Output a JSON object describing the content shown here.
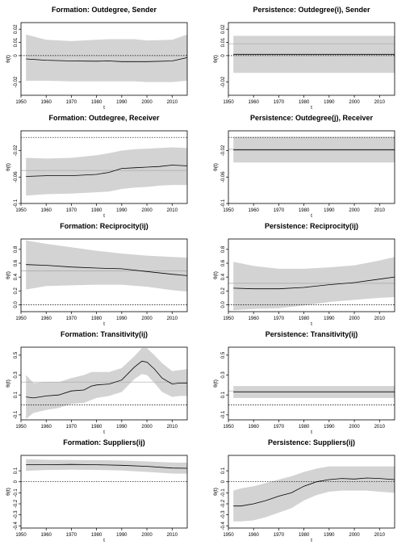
{
  "chart_data": [
    {
      "type": "area",
      "title": "Formation: Outdegree, Sender",
      "xlabel": "t",
      "ylabel": "θ(t)",
      "xlim": [
        1950,
        2016
      ],
      "ylim": [
        -0.03,
        0.025
      ],
      "xticks": [
        1950,
        1960,
        1970,
        1980,
        1990,
        2000,
        2010
      ],
      "yticks": [
        -0.02,
        0,
        0.01,
        0.02
      ],
      "ytick_labels": [
        "-0.02",
        "0",
        "0.01",
        "0.02"
      ],
      "reference_lines": [
        {
          "y": 0,
          "style": "dotted"
        }
      ],
      "series": [
        {
          "role": "estimate",
          "x": [
            1952,
            1960,
            1970,
            1980,
            1985,
            1990,
            1995,
            2000,
            2010,
            2016
          ],
          "y": [
            -0.0025,
            -0.0035,
            -0.004,
            -0.0042,
            -0.004,
            -0.0045,
            -0.0045,
            -0.0045,
            -0.004,
            -0.0015
          ]
        },
        {
          "role": "upper",
          "x": [
            1952,
            1960,
            1970,
            1980,
            1985,
            1990,
            1995,
            2000,
            2010,
            2016
          ],
          "y": [
            0.016,
            0.012,
            0.011,
            0.012,
            0.0125,
            0.0125,
            0.0125,
            0.0115,
            0.012,
            0.016
          ]
        },
        {
          "role": "lower",
          "x": [
            1952,
            1960,
            1970,
            1980,
            1985,
            1990,
            1995,
            2000,
            2010,
            2016
          ],
          "y": [
            -0.019,
            -0.019,
            -0.0195,
            -0.0195,
            -0.0195,
            -0.0195,
            -0.0195,
            -0.02,
            -0.02,
            -0.019
          ]
        }
      ]
    },
    {
      "type": "area",
      "title": "Persistence: Outdegree(i), Sender",
      "xlabel": "t",
      "ylabel": "θ(t)",
      "xlim": [
        1950,
        2016
      ],
      "ylim": [
        -0.03,
        0.025
      ],
      "xticks": [
        1950,
        1960,
        1970,
        1980,
        1990,
        2000,
        2010
      ],
      "yticks": [
        -0.02,
        0,
        0.01,
        0.02
      ],
      "ytick_labels": [
        "-0.02",
        "0",
        "0.01",
        "0.02"
      ],
      "reference_lines": [
        {
          "y": 0,
          "style": "dotted"
        },
        {
          "y": 0.009,
          "style": "solid-light"
        }
      ],
      "series": [
        {
          "role": "estimate",
          "x": [
            1952,
            2016
          ],
          "y": [
            0.001,
            0.001
          ]
        },
        {
          "role": "upper",
          "x": [
            1952,
            2016
          ],
          "y": [
            0.015,
            0.015
          ]
        },
        {
          "role": "lower",
          "x": [
            1952,
            2016
          ],
          "y": [
            -0.013,
            -0.013
          ]
        }
      ]
    },
    {
      "type": "area",
      "title": "Formation: Outdegree, Receiver",
      "xlabel": "t",
      "ylabel": "θ(t)",
      "xlim": [
        1950,
        2016
      ],
      "ylim": [
        -0.1,
        0.01
      ],
      "xticks": [
        1950,
        1960,
        1970,
        1980,
        1990,
        2000,
        2010
      ],
      "yticks": [
        -0.1,
        -0.06,
        -0.02
      ],
      "ytick_labels": [
        "-0.1",
        "-0.06",
        "-0.02"
      ],
      "reference_lines": [
        {
          "y": 0,
          "style": "dotted"
        },
        {
          "y": -0.05,
          "style": "solid-light"
        }
      ],
      "series": [
        {
          "role": "estimate",
          "x": [
            1952,
            1960,
            1970,
            1980,
            1985,
            1990,
            1995,
            2000,
            2005,
            2010,
            2016
          ],
          "y": [
            -0.059,
            -0.058,
            -0.058,
            -0.056,
            -0.053,
            -0.047,
            -0.046,
            -0.045,
            -0.044,
            -0.042,
            -0.043
          ]
        },
        {
          "role": "upper",
          "x": [
            1952,
            1960,
            1970,
            1980,
            1985,
            1990,
            1995,
            2000,
            2005,
            2010,
            2016
          ],
          "y": [
            -0.031,
            -0.032,
            -0.031,
            -0.027,
            -0.024,
            -0.02,
            -0.018,
            -0.017,
            -0.016,
            -0.015,
            -0.016
          ]
        },
        {
          "role": "lower",
          "x": [
            1952,
            1960,
            1970,
            1980,
            1985,
            1990,
            1995,
            2000,
            2005,
            2010,
            2016
          ],
          "y": [
            -0.088,
            -0.086,
            -0.085,
            -0.083,
            -0.082,
            -0.078,
            -0.076,
            -0.075,
            -0.073,
            -0.072,
            -0.072
          ]
        }
      ]
    },
    {
      "type": "area",
      "title": "Persistence: Outdegree(j), Receiver",
      "xlabel": "t",
      "ylabel": "θ(t)",
      "xlim": [
        1950,
        2016
      ],
      "ylim": [
        -0.1,
        0.01
      ],
      "xticks": [
        1950,
        1960,
        1970,
        1980,
        1990,
        2000,
        2010
      ],
      "yticks": [
        -0.1,
        -0.06,
        -0.02
      ],
      "ytick_labels": [
        "-0.1",
        "-0.06",
        "-0.02"
      ],
      "reference_lines": [
        {
          "y": 0,
          "style": "dotted"
        },
        {
          "y": -0.018,
          "style": "solid-light"
        }
      ],
      "series": [
        {
          "role": "estimate",
          "x": [
            1952,
            2016
          ],
          "y": [
            -0.019,
            -0.019
          ]
        },
        {
          "role": "upper",
          "x": [
            1952,
            2016
          ],
          "y": [
            0.001,
            0.001
          ]
        },
        {
          "role": "lower",
          "x": [
            1952,
            2016
          ],
          "y": [
            -0.038,
            -0.038
          ]
        }
      ]
    },
    {
      "type": "area",
      "title": "Formation: Reciprocity(ij)",
      "xlabel": "t",
      "ylabel": "θ(t)",
      "xlim": [
        1950,
        2016
      ],
      "ylim": [
        -0.1,
        0.95
      ],
      "xticks": [
        1950,
        1960,
        1970,
        1980,
        1990,
        2000,
        2010
      ],
      "yticks": [
        0,
        0.2,
        0.4,
        0.6,
        0.8
      ],
      "ytick_labels": [
        "0.0",
        "0.2",
        "0.4",
        "0.6",
        "0.8"
      ],
      "reference_lines": [
        {
          "y": 0,
          "style": "dotted"
        },
        {
          "y": 0.49,
          "style": "solid-light"
        }
      ],
      "series": [
        {
          "role": "estimate",
          "x": [
            1952,
            1960,
            1970,
            1980,
            1990,
            2000,
            2010,
            2016
          ],
          "y": [
            0.58,
            0.57,
            0.545,
            0.53,
            0.52,
            0.48,
            0.44,
            0.42
          ]
        },
        {
          "role": "upper",
          "x": [
            1952,
            1960,
            1970,
            1980,
            1990,
            2000,
            2010,
            2016
          ],
          "y": [
            0.93,
            0.88,
            0.83,
            0.78,
            0.74,
            0.71,
            0.69,
            0.68
          ]
        },
        {
          "role": "lower",
          "x": [
            1952,
            1960,
            1970,
            1980,
            1990,
            2000,
            2010,
            2016
          ],
          "y": [
            0.22,
            0.27,
            0.28,
            0.29,
            0.29,
            0.26,
            0.21,
            0.19
          ]
        }
      ]
    },
    {
      "type": "area",
      "title": "Persistence: Reciprocity(ij)",
      "xlabel": "t",
      "ylabel": "θ(t)",
      "xlim": [
        1950,
        2016
      ],
      "ylim": [
        -0.1,
        0.95
      ],
      "xticks": [
        1950,
        1960,
        1970,
        1980,
        1990,
        2000,
        2010
      ],
      "yticks": [
        0,
        0.2,
        0.4,
        0.6,
        0.8
      ],
      "ytick_labels": [
        "0.0",
        "0.2",
        "0.4",
        "0.6",
        "0.8"
      ],
      "reference_lines": [
        {
          "y": 0,
          "style": "dotted"
        },
        {
          "y": 0.31,
          "style": "solid-light"
        }
      ],
      "series": [
        {
          "role": "estimate",
          "x": [
            1952,
            1960,
            1970,
            1980,
            1990,
            2000,
            2010,
            2016
          ],
          "y": [
            0.24,
            0.23,
            0.23,
            0.25,
            0.29,
            0.32,
            0.37,
            0.4
          ]
        },
        {
          "role": "upper",
          "x": [
            1952,
            1960,
            1970,
            1980,
            1990,
            2000,
            2010,
            2016
          ],
          "y": [
            0.62,
            0.56,
            0.52,
            0.52,
            0.54,
            0.57,
            0.64,
            0.69
          ]
        },
        {
          "role": "lower",
          "x": [
            1952,
            1960,
            1970,
            1980,
            1990,
            2000,
            2010,
            2016
          ],
          "y": [
            -0.08,
            -0.06,
            -0.05,
            -0.01,
            0.04,
            0.07,
            0.1,
            0.11
          ]
        }
      ]
    },
    {
      "type": "area",
      "title": "Formation: Transitivity(ij)",
      "xlabel": "t",
      "ylabel": "θ(t)",
      "xlim": [
        1950,
        2016
      ],
      "ylim": [
        -0.15,
        0.58
      ],
      "xticks": [
        1950,
        1960,
        1970,
        1980,
        1990,
        2000,
        2010
      ],
      "yticks": [
        -0.1,
        0.1,
        0.3,
        0.5
      ],
      "ytick_labels": [
        "-0.1",
        "0.1",
        "0.3",
        "0.5"
      ],
      "reference_lines": [
        {
          "y": 0,
          "style": "dotted"
        },
        {
          "y": 0.23,
          "style": "solid-light"
        }
      ],
      "series": [
        {
          "role": "estimate",
          "x": [
            1952,
            1955,
            1960,
            1965,
            1970,
            1975,
            1978,
            1980,
            1985,
            1990,
            1995,
            1998,
            2000,
            2003,
            2006,
            2010,
            2013,
            2016
          ],
          "y": [
            0.08,
            0.07,
            0.09,
            0.1,
            0.14,
            0.15,
            0.19,
            0.2,
            0.21,
            0.25,
            0.38,
            0.44,
            0.43,
            0.36,
            0.27,
            0.21,
            0.22,
            0.22
          ]
        },
        {
          "role": "upper",
          "x": [
            1952,
            1955,
            1960,
            1965,
            1970,
            1975,
            1978,
            1980,
            1985,
            1990,
            1995,
            1998,
            2000,
            2003,
            2006,
            2010,
            2013,
            2016
          ],
          "y": [
            0.3,
            0.22,
            0.23,
            0.23,
            0.27,
            0.3,
            0.33,
            0.33,
            0.33,
            0.37,
            0.49,
            0.57,
            0.57,
            0.5,
            0.42,
            0.34,
            0.35,
            0.36
          ]
        },
        {
          "role": "lower",
          "x": [
            1952,
            1955,
            1960,
            1965,
            1970,
            1975,
            1978,
            1980,
            1985,
            1990,
            1995,
            1998,
            2000,
            2003,
            2006,
            2010,
            2013,
            2016
          ],
          "y": [
            -0.14,
            -0.08,
            -0.05,
            -0.03,
            0.01,
            0.02,
            0.05,
            0.07,
            0.09,
            0.13,
            0.26,
            0.31,
            0.3,
            0.22,
            0.13,
            0.08,
            0.09,
            0.09
          ]
        }
      ]
    },
    {
      "type": "area",
      "title": "Persistence: Transitivity(ij)",
      "xlabel": "t",
      "ylabel": "θ(t)",
      "xlim": [
        1950,
        2016
      ],
      "ylim": [
        -0.15,
        0.58
      ],
      "xticks": [
        1950,
        1960,
        1970,
        1980,
        1990,
        2000,
        2010
      ],
      "yticks": [
        -0.1,
        0.1,
        0.3,
        0.5
      ],
      "ytick_labels": [
        "-0.1",
        "0.1",
        "0.3",
        "0.5"
      ],
      "reference_lines": [
        {
          "y": 0,
          "style": "dotted"
        },
        {
          "y": 0.14,
          "style": "solid-light"
        }
      ],
      "series": [
        {
          "role": "estimate",
          "x": [
            1952,
            2016
          ],
          "y": [
            0.13,
            0.13
          ]
        },
        {
          "role": "upper",
          "x": [
            1952,
            2016
          ],
          "y": [
            0.19,
            0.19
          ]
        },
        {
          "role": "lower",
          "x": [
            1952,
            2016
          ],
          "y": [
            0.07,
            0.07
          ]
        }
      ]
    },
    {
      "type": "area",
      "title": "Formation: Suppliers(ij)",
      "xlabel": "t",
      "ylabel": "θ(t)",
      "xlim": [
        1950,
        2016
      ],
      "ylim": [
        -0.42,
        0.24
      ],
      "xticks": [
        1950,
        1960,
        1970,
        1980,
        1990,
        2000,
        2010
      ],
      "yticks": [
        -0.4,
        -0.3,
        -0.2,
        -0.1,
        0,
        0.1
      ],
      "ytick_labels": [
        "-0.4",
        "-0.3",
        "-0.2",
        "-0.1",
        "0",
        "0.1"
      ],
      "reference_lines": [
        {
          "y": 0,
          "style": "dotted"
        }
      ],
      "series": [
        {
          "role": "estimate",
          "x": [
            1952,
            1960,
            1970,
            1980,
            1990,
            2000,
            2010,
            2016
          ],
          "y": [
            0.155,
            0.155,
            0.158,
            0.155,
            0.15,
            0.14,
            0.125,
            0.123
          ]
        },
        {
          "role": "upper",
          "x": [
            1952,
            1960,
            1970,
            1980,
            1990,
            2000,
            2010,
            2016
          ],
          "y": [
            0.205,
            0.2,
            0.198,
            0.197,
            0.193,
            0.185,
            0.175,
            0.175
          ]
        },
        {
          "role": "lower",
          "x": [
            1952,
            1960,
            1970,
            1980,
            1990,
            2000,
            2010,
            2016
          ],
          "y": [
            0.1,
            0.107,
            0.11,
            0.108,
            0.103,
            0.09,
            0.075,
            0.073
          ]
        }
      ]
    },
    {
      "type": "area",
      "title": "Persistence: Suppliers(ij)",
      "xlabel": "t",
      "ylabel": "θ(t)",
      "xlim": [
        1950,
        2016
      ],
      "ylim": [
        -0.42,
        0.24
      ],
      "xticks": [
        1950,
        1960,
        1970,
        1980,
        1990,
        2000,
        2010
      ],
      "yticks": [
        -0.4,
        -0.3,
        -0.2,
        -0.1,
        0,
        0.1
      ],
      "ytick_labels": [
        "-0.4",
        "-0.3",
        "-0.2",
        "-0.1",
        "0",
        "0.1"
      ],
      "reference_lines": [
        {
          "y": 0,
          "style": "dotted"
        }
      ],
      "series": [
        {
          "role": "estimate",
          "x": [
            1952,
            1955,
            1960,
            1965,
            1970,
            1975,
            1980,
            1985,
            1990,
            1995,
            2000,
            2005,
            2010,
            2016
          ],
          "y": [
            -0.22,
            -0.22,
            -0.2,
            -0.17,
            -0.13,
            -0.1,
            -0.04,
            0.0,
            0.02,
            0.03,
            0.025,
            0.035,
            0.03,
            0.02
          ]
        },
        {
          "role": "upper",
          "x": [
            1952,
            1955,
            1960,
            1965,
            1970,
            1975,
            1980,
            1985,
            1990,
            1995,
            2000,
            2005,
            2010,
            2016
          ],
          "y": [
            -0.08,
            -0.06,
            -0.04,
            -0.01,
            0.02,
            0.05,
            0.09,
            0.12,
            0.14,
            0.14,
            0.14,
            0.14,
            0.14,
            0.14
          ]
        },
        {
          "role": "lower",
          "x": [
            1952,
            1955,
            1960,
            1965,
            1970,
            1975,
            1980,
            1985,
            1990,
            1995,
            2000,
            2005,
            2010,
            2016
          ],
          "y": [
            -0.36,
            -0.36,
            -0.35,
            -0.32,
            -0.28,
            -0.24,
            -0.17,
            -0.12,
            -0.09,
            -0.08,
            -0.08,
            -0.08,
            -0.09,
            -0.1
          ]
        }
      ]
    }
  ]
}
